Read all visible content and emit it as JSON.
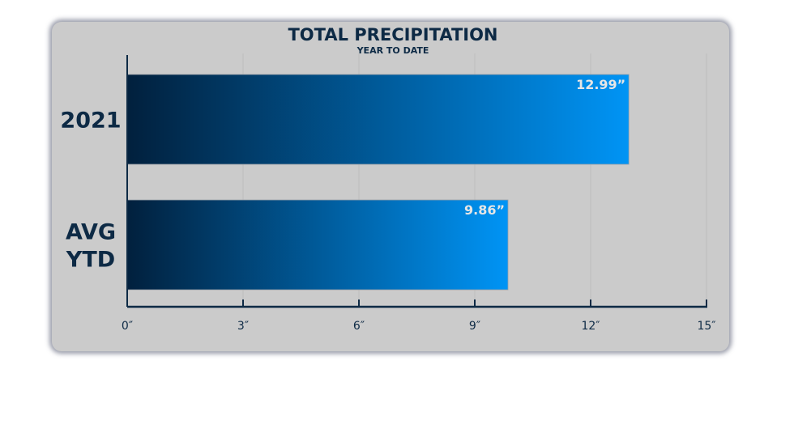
{
  "chart_data": {
    "type": "bar",
    "orientation": "horizontal",
    "title": "TOTAL PRECIPITATION",
    "subtitle": "YEAR TO DATE",
    "categories": [
      [
        "2021"
      ],
      [
        "AVG",
        "YTD"
      ]
    ],
    "values": [
      12.99,
      9.86
    ],
    "value_labels": [
      "12.99”",
      "9.86”"
    ],
    "xlim": [
      0,
      15
    ],
    "xticks": [
      0,
      3,
      6,
      9,
      12,
      15
    ],
    "xtick_labels": [
      "0″",
      "3″",
      "6″",
      "9″",
      "12″",
      "15″"
    ],
    "grid": "vertical",
    "colors": {
      "bar_start": "#01203d",
      "bar_end": "#0094f5",
      "text": "#0d2a45",
      "background": "#cbcbcb"
    }
  }
}
